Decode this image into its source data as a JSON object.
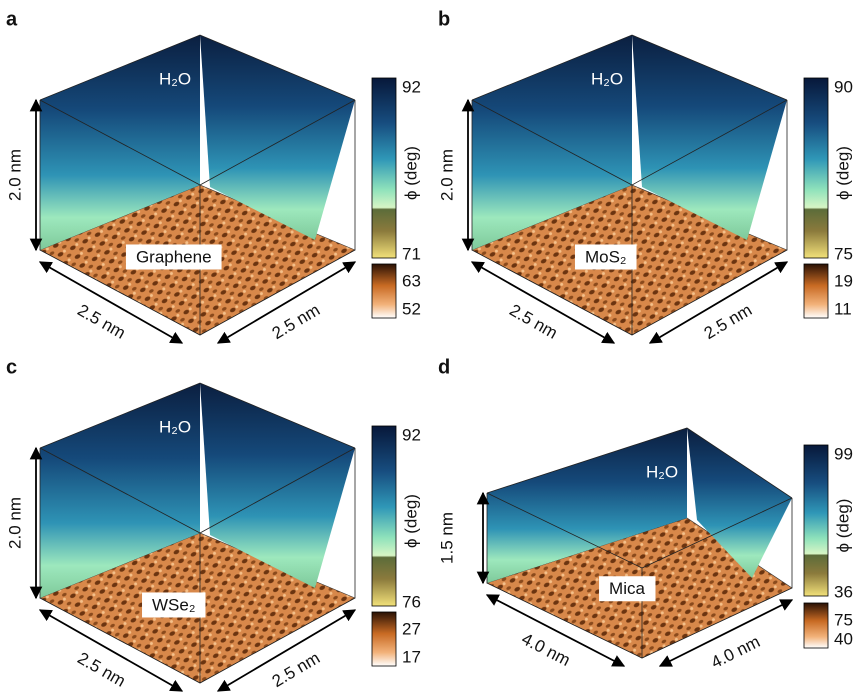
{
  "panels": [
    {
      "letter": "a",
      "water": "H₂O",
      "substrate": "Graphene",
      "height": "2.0 nm",
      "width": "2.5 nm",
      "depth": "2.5 nm",
      "colorbar_label": "ϕ (deg)",
      "water_scale": [
        "92",
        "71"
      ],
      "surface_scale": [
        "63",
        "52"
      ]
    },
    {
      "letter": "b",
      "water": "H₂O",
      "substrate": "MoS₂",
      "height": "2.0 nm",
      "width": "2.5 nm",
      "depth": "2.5 nm",
      "colorbar_label": "ϕ (deg)",
      "water_scale": [
        "90",
        "75"
      ],
      "surface_scale": [
        "19",
        "11"
      ]
    },
    {
      "letter": "c",
      "water": "H₂O",
      "substrate": "WSe₂",
      "height": "2.0 nm",
      "width": "2.5 nm",
      "depth": "2.5 nm",
      "colorbar_label": "ϕ (deg)",
      "water_scale": [
        "92",
        "76"
      ],
      "surface_scale": [
        "27",
        "17"
      ]
    },
    {
      "letter": "d",
      "water": "H₂O",
      "substrate": "Mica",
      "height": "1.5 nm",
      "width": "4.0 nm",
      "depth": "4.0 nm",
      "colorbar_label": "ϕ (deg)",
      "water_scale": [
        "99",
        "36"
      ],
      "surface_scale": [
        "75",
        "40"
      ]
    }
  ]
}
